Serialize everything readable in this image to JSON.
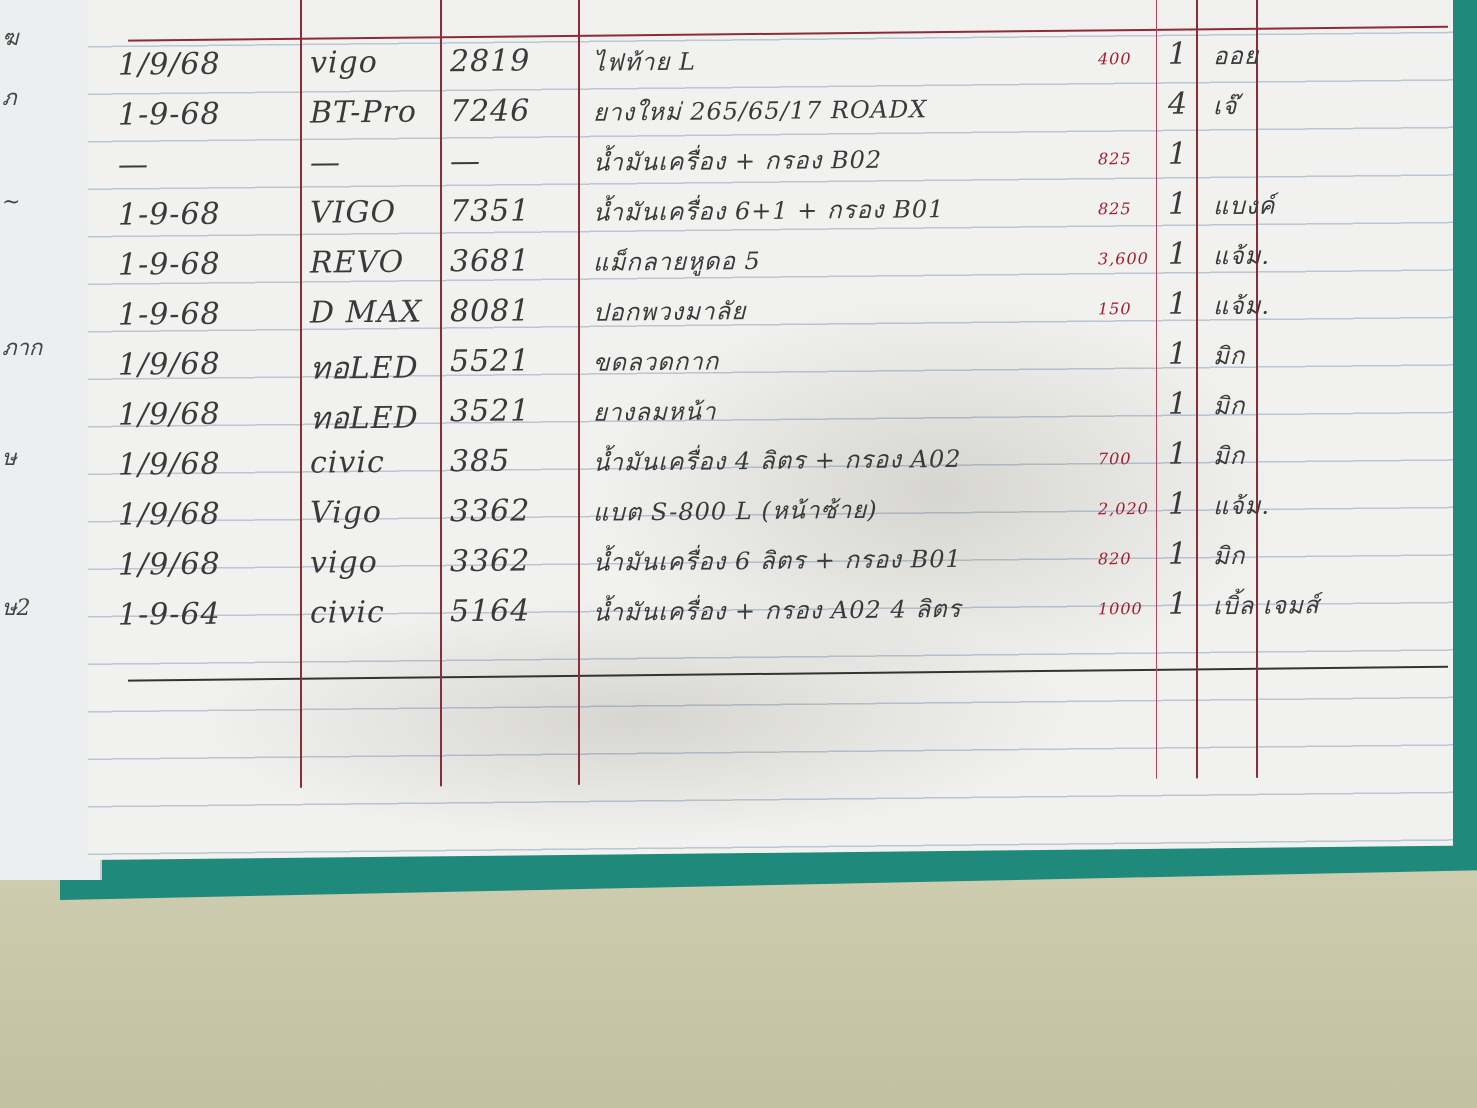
{
  "ledger": {
    "rows": [
      {
        "date": "1/9/68",
        "car": "vigo",
        "plate": "2819",
        "item": "ไฟท้าย L",
        "price": "400",
        "qty": "1",
        "staff": "ออย"
      },
      {
        "date": "1-9-68",
        "car": "BT-Pro",
        "plate": "7246",
        "item": "ยางใหม่ 265/65/17 ROADX",
        "price": "",
        "qty": "4",
        "staff": "เจ๊"
      },
      {
        "date": "—",
        "car": "—",
        "plate": "—",
        "item": "น้ำมันเครื่อง + กรอง B02",
        "price": "825",
        "qty": "1",
        "staff": ""
      },
      {
        "date": "1-9-68",
        "car": "VIGO",
        "plate": "7351",
        "item": "น้ำมันเครื่อง 6+1 + กรอง B01",
        "price": "825",
        "qty": "1",
        "staff": "แบงค์"
      },
      {
        "date": "1-9-68",
        "car": "REVO",
        "plate": "3681",
        "item": "แม็กลายหูดอ 5",
        "price": "3,600",
        "qty": "1",
        "staff": "แจ้ม."
      },
      {
        "date": "1-9-68",
        "car": "D MAX",
        "plate": "8081",
        "item": "ปอกพวงมาลัย",
        "price": "150",
        "qty": "1",
        "staff": "แจ้ม."
      },
      {
        "date": "1/9/68",
        "car": "ทอLED",
        "plate": "5521",
        "item": "ขดลวดกาก",
        "price": "",
        "qty": "1",
        "staff": "มิก"
      },
      {
        "date": "1/9/68",
        "car": "ทอLED",
        "plate": "3521",
        "item": "ยางลมหน้า",
        "price": "",
        "qty": "1",
        "staff": "มิก"
      },
      {
        "date": "1/9/68",
        "car": "civic",
        "plate": "385",
        "item": "น้ำมันเครื่อง 4 ลิตร + กรอง A02",
        "price": "700",
        "qty": "1",
        "staff": "มิก"
      },
      {
        "date": "1/9/68",
        "car": "Vigo",
        "plate": "3362",
        "item": "แบต S-800 L (หน้าซ้าย)",
        "price": "2,020",
        "qty": "1",
        "staff": "แจ้ม."
      },
      {
        "date": "1/9/68",
        "car": "vigo",
        "plate": "3362",
        "item": "น้ำมันเครื่อง 6 ลิตร + กรอง B01",
        "price": "820",
        "qty": "1",
        "staff": "มิก"
      },
      {
        "date": "1-9-64",
        "car": "civic",
        "plate": "5164",
        "item": "น้ำมันเครื่อง + กรอง A02 4 ลิตร",
        "price": "1000",
        "qty": "1",
        "staff": "เบิ้ล เจมส์"
      }
    ]
  },
  "colors": {
    "ink": "#3a3a3a",
    "red_ink": "#a41d2c",
    "cover": "#1f8a7c",
    "paper": "#f1f1ef"
  }
}
